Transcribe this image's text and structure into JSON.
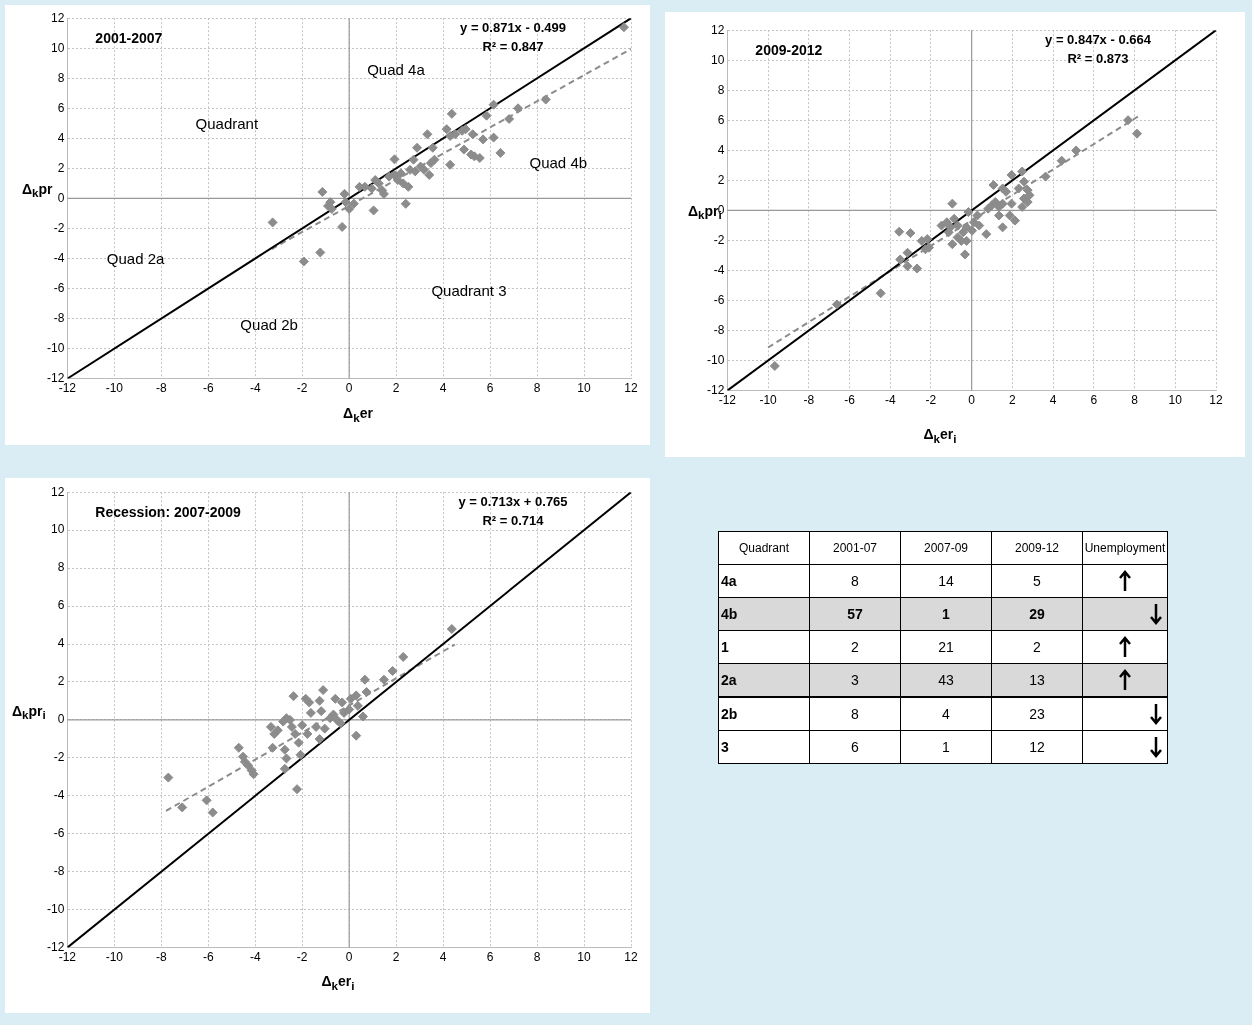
{
  "chart_data": [
    {
      "type": "scatter",
      "title": "2001-2007",
      "xlabel": "Δ$_{k}$er",
      "ylabel": "Δ$_{k}$pr",
      "xlim": [
        -12,
        12
      ],
      "ylim": [
        -12,
        12
      ],
      "xticks": [
        -12,
        -10,
        -8,
        -6,
        -4,
        -2,
        0,
        2,
        4,
        6,
        8,
        10,
        12
      ],
      "yticks": [
        -12,
        -10,
        -8,
        -6,
        -4,
        -2,
        0,
        2,
        4,
        6,
        8,
        10,
        12
      ],
      "grid": true,
      "annotations": [
        "y = 0.871x - 0.499",
        "R² = 0.847",
        "Quad 4a",
        "Quadrant",
        "Quad 4b",
        "Quad 2a",
        "Quadrant 3",
        "Quad 2b"
      ],
      "series": [
        {
          "type": "line",
          "color": "#000000",
          "marker": "none",
          "line_style": "solid",
          "x": [
            -12,
            12
          ],
          "values": [
            -12,
            12
          ]
        },
        {
          "type": "line",
          "color": "#8c8c8c",
          "marker": "none",
          "line_style": "dashed",
          "x": [
            -3.3,
            12
          ],
          "values": [
            -3.37,
            9.95
          ]
        },
        {
          "type": "scatter",
          "color": "#8c8c8c",
          "marker": "diamond",
          "x": [
            11.7,
            -3.26,
            -1.93,
            -1.23,
            -1.14,
            -0.3,
            -0.8,
            -0.74,
            -0.9,
            -0.2,
            -0.15,
            0,
            0.2,
            1.04,
            0.44,
            0.67,
            1.11,
            1.26,
            0.96,
            1.48,
            1.4,
            1.93,
            1.7,
            1.93,
            2.07,
            2.2,
            2.3,
            2.52,
            2.41,
            2.74,
            2.89,
            2.59,
            2.81,
            3.04,
            3.19,
            3.41,
            3.48,
            3.63,
            3.56,
            3.33,
            4.3,
            4.15,
            4.37,
            4.3,
            4.52,
            4.81,
            4.96,
            4.89,
            5.19,
            5.33,
            5.56,
            5.26,
            5.7,
            6.15,
            6.44,
            5.85,
            6.15,
            6.81,
            7.19,
            8.37
          ],
          "values": [
            11.4,
            -1.6,
            -4.2,
            -3.6,
            0.43,
            -1.9,
            -0.25,
            -0.7,
            -0.5,
            0.3,
            -0.25,
            -0.7,
            -0.35,
            -0.8,
            0.77,
            0.77,
            1.22,
            1,
            0.66,
            0.3,
            0.54,
            2.6,
            1.45,
            1.56,
            1.22,
            1.67,
            1,
            0.77,
            -0.36,
            2.58,
            3.37,
            1.9,
            1.8,
            2.12,
            1.9,
            1.56,
            2.35,
            2.58,
            3.37,
            4.27,
            2.24,
            4.61,
            5.63,
            4.16,
            4.27,
            4.5,
            4.61,
            3.25,
            2.92,
            2.8,
            2.69,
            4.27,
            3.93,
            4.05,
            3.03,
            5.51,
            6.24,
            5.29,
            6,
            6.58
          ]
        }
      ]
    },
    {
      "type": "scatter",
      "title": "2009-2012",
      "xlabel": "Δ$_{k}$er$_{i}$",
      "ylabel": "Δ$_{k}$pr$_{i}$",
      "xlim": [
        -12,
        12
      ],
      "ylim": [
        -12,
        12
      ],
      "xticks": [
        -12,
        -10,
        -8,
        -6,
        -4,
        -2,
        0,
        2,
        4,
        6,
        8,
        10,
        12
      ],
      "yticks": [
        -12,
        -10,
        -8,
        -6,
        -4,
        -2,
        0,
        2,
        4,
        6,
        8,
        10,
        12
      ],
      "grid": true,
      "annotations": [
        "y = 0.847x - 0.664",
        "R² = 0.873"
      ],
      "series": [
        {
          "type": "line",
          "color": "#000000",
          "marker": "none",
          "line_style": "solid",
          "x": [
            -12,
            12
          ],
          "values": [
            -12,
            12
          ]
        },
        {
          "type": "line",
          "color": "#8c8c8c",
          "marker": "none",
          "line_style": "dashed",
          "x": [
            -10,
            8.2
          ],
          "values": [
            -9.13,
            6.28
          ]
        },
        {
          "type": "scatter",
          "color": "#8c8c8c",
          "marker": "diamond",
          "x": [
            -9.67,
            -6.62,
            -4.47,
            -3.56,
            -3.01,
            -3.51,
            -3.15,
            -3.15,
            -2.68,
            -2.45,
            -2.18,
            -2.27,
            -2.1,
            -0.95,
            -1.48,
            -1.22,
            -1.04,
            -0.86,
            -0.69,
            -1.13,
            -0.95,
            -0.69,
            -0.51,
            -0.33,
            -0.42,
            -0.25,
            -0.16,
            0.11,
            0.02,
            0.37,
            0.72,
            -0.25,
            0.28,
            0.81,
            0.99,
            1.16,
            1.34,
            1.52,
            1.07,
            1.52,
            1.69,
            1.34,
            1.52,
            1.87,
            2.13,
            1.96,
            1.96,
            2.31,
            2.48,
            2.57,
            2.75,
            2.84,
            2.57,
            2.75,
            2.48,
            3.63,
            4.42,
            5.13,
            7.68,
            8.12
          ],
          "values": [
            -10.36,
            -6.26,
            -5.52,
            -1.42,
            -1.51,
            -3.27,
            -2.82,
            -3.72,
            -3.87,
            -2.03,
            -1.91,
            -2.59,
            -2.48,
            0.45,
            -1.01,
            -0.79,
            -1.13,
            -0.56,
            -1.01,
            -1.46,
            -2.25,
            -1.8,
            -2.03,
            -2.93,
            -1.46,
            -1.13,
            -0.11,
            -0.79,
            -1.35,
            -1.01,
            -1.58,
            -2.03,
            -0.34,
            0.11,
            0.34,
            0.56,
            0.23,
            0.45,
            1.69,
            1.46,
            1.24,
            -0.34,
            -1.13,
            -0.34,
            -0.68,
            0.45,
            2.36,
            1.46,
            2.59,
            1.91,
            1.35,
            1.01,
            0.79,
            0.56,
            0.23,
            2.25,
            3.31,
            3.99,
            6.01,
            5.11
          ]
        }
      ]
    },
    {
      "type": "scatter",
      "title": "Recession: 2007-2009",
      "xlabel": "Δ$_{k}$er$_{i}$",
      "ylabel": "Δ$_{k}$pr$_{i}$",
      "xlim": [
        -12,
        12
      ],
      "ylim": [
        -12,
        12
      ],
      "xticks": [
        -12,
        -10,
        -8,
        -6,
        -4,
        -2,
        0,
        2,
        4,
        6,
        8,
        10,
        12
      ],
      "yticks": [
        -12,
        -10,
        -8,
        -6,
        -4,
        -2,
        0,
        2,
        4,
        6,
        8,
        10,
        12
      ],
      "grid": true,
      "annotations": [
        "y = 0.713x + 0.765",
        "R² = 0.714"
      ],
      "series": [
        {
          "type": "line",
          "color": "#000000",
          "marker": "none",
          "line_style": "solid",
          "x": [
            -12,
            12
          ],
          "values": [
            -12,
            12
          ]
        },
        {
          "type": "line",
          "color": "#8c8c8c",
          "marker": "none",
          "line_style": "dashed",
          "x": [
            -7.8,
            4.5
          ],
          "values": [
            -4.8,
            3.97
          ]
        },
        {
          "type": "scatter",
          "color": "#8c8c8c",
          "marker": "diamond",
          "x": [
            -7.7,
            -7.11,
            -6.07,
            -5.81,
            -4.7,
            -4.52,
            -4.44,
            -4.3,
            -4.15,
            -4.07,
            -2.37,
            -2.22,
            -3.33,
            -3.19,
            -3.04,
            -2.81,
            -2.67,
            -2.52,
            -2.44,
            -2.3,
            -3.26,
            -2.74,
            -2.67,
            -2.74,
            -2.07,
            -2.15,
            -1.78,
            -2,
            -1.85,
            -1.7,
            -1.63,
            -1.26,
            -1.11,
            -1.19,
            -1.41,
            -1.26,
            -1.04,
            -0.81,
            -0.67,
            -0.52,
            -0.37,
            -0.59,
            -0.3,
            -0.22,
            0,
            0.07,
            0.3,
            0.37,
            0.59,
            0.3,
            0.67,
            0.74,
            1.48,
            1.85,
            2.3,
            4.37
          ],
          "values": [
            -3.04,
            -4.61,
            -4.24,
            -4.88,
            -1.47,
            -1.94,
            -2.21,
            -2.4,
            -2.67,
            -2.86,
            1.25,
            -3.65,
            -0.37,
            -0.74,
            -0.55,
            -0.09,
            0.09,
            0,
            -0.37,
            -0.74,
            -1.47,
            -1.57,
            -2.03,
            -2.58,
            -1.84,
            -1.2,
            -0.74,
            -0.28,
            1.11,
            0.92,
            0.37,
            1.01,
            1.57,
            0.46,
            -0.37,
            -1.01,
            -0.46,
            0.09,
            0.28,
            0,
            -0.18,
            1.11,
            0.92,
            0.37,
            0.55,
            1.11,
            1.29,
            0.74,
            0.18,
            -0.83,
            2.12,
            1.47,
            2.12,
            2.58,
            3.32,
            4.79
          ]
        }
      ]
    },
    {
      "type": "heatmap",
      "ylabel": "Quadrant",
      "y2label": "Unemployment",
      "categories": [
        "2001-07",
        "2007-09",
        "2009-12"
      ],
      "y_categories": [
        "4a",
        "4b",
        "1",
        "2a",
        "2b",
        "3"
      ],
      "cells": [
        [
          8,
          14,
          5
        ],
        [
          57,
          1,
          29
        ],
        [
          2,
          21,
          2
        ],
        [
          3,
          43,
          13
        ],
        [
          8,
          4,
          23
        ],
        [
          6,
          1,
          12
        ]
      ],
      "data_labels": true
    }
  ]
}
